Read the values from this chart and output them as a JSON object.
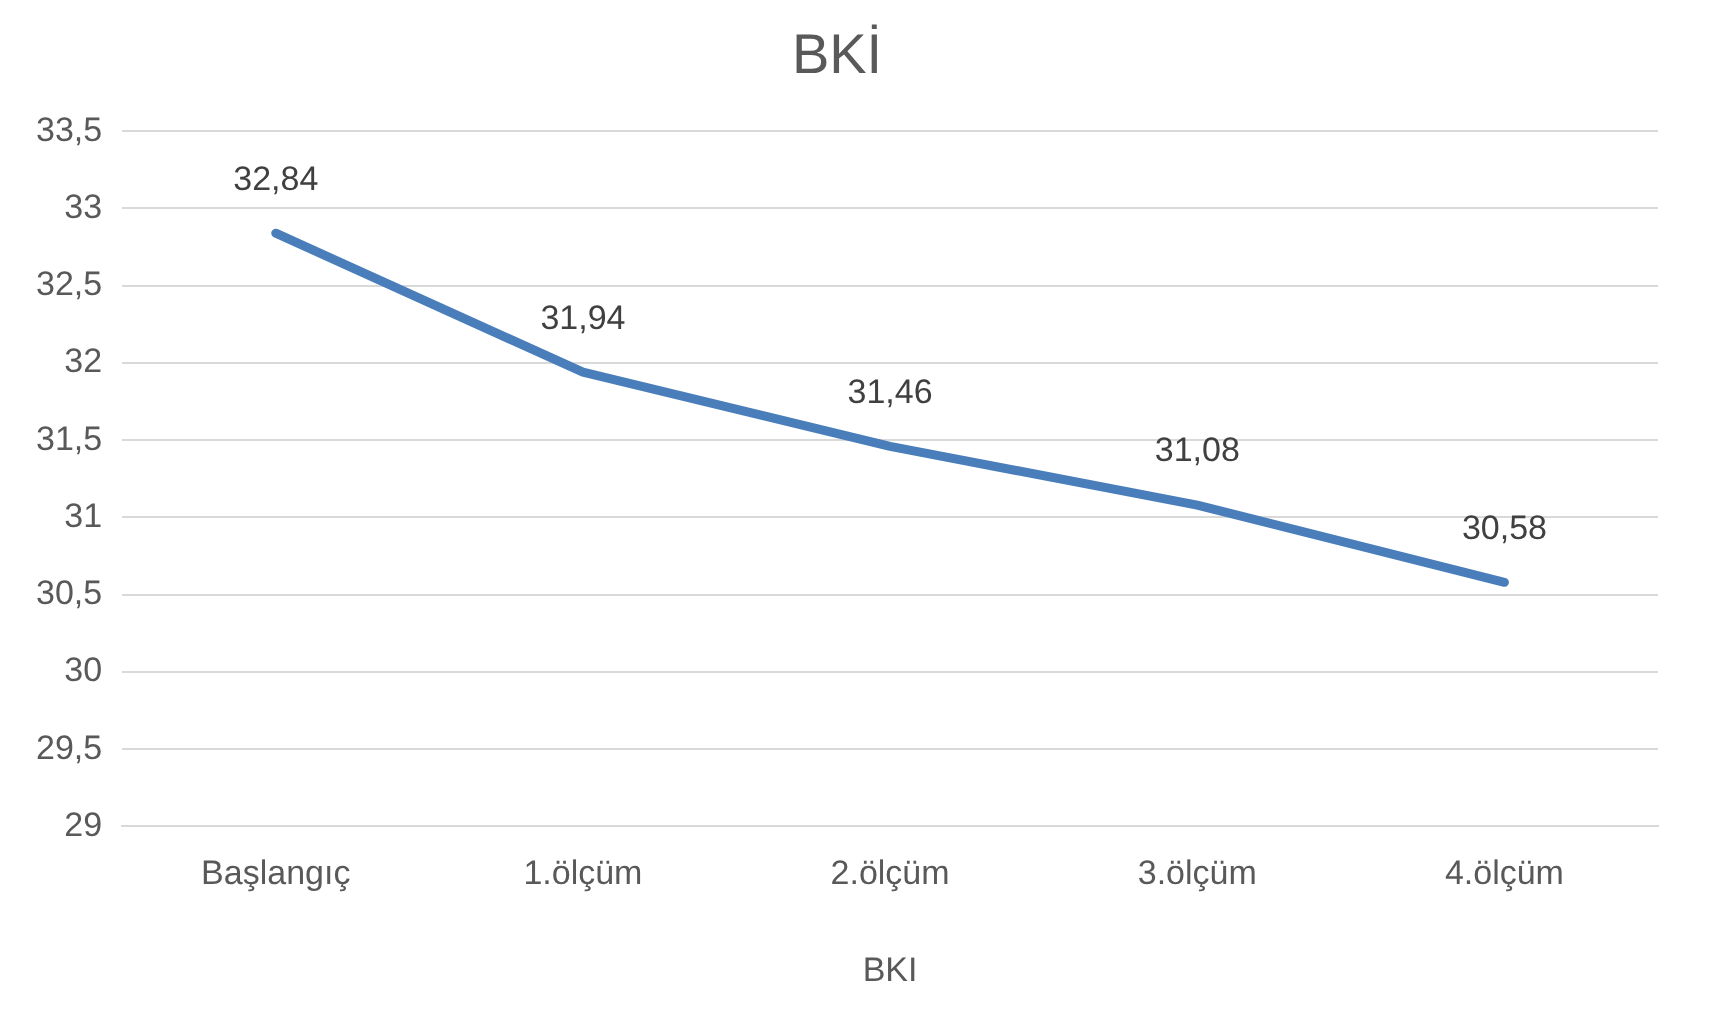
{
  "chart_data": {
    "type": "line",
    "title": "BKİ",
    "xlabel": "BKI",
    "categories": [
      "Başlangıç",
      "1.ölçüm",
      "2.ölçüm",
      "3.ölçüm",
      "4.ölçüm"
    ],
    "series": [
      {
        "color": "#4a7ebb",
        "values": [
          32.84,
          31.94,
          31.46,
          31.08,
          30.58
        ],
        "value_labels": [
          "32,84",
          "31,94",
          "31,46",
          "31,08",
          "30,58"
        ]
      }
    ],
    "ylim": [
      29,
      33.5
    ],
    "yticks": [
      {
        "value": 29,
        "label": "29"
      },
      {
        "value": 29.5,
        "label": "29,5"
      },
      {
        "value": 30,
        "label": "30"
      },
      {
        "value": 30.5,
        "label": "30,5"
      },
      {
        "value": 31,
        "label": "31"
      },
      {
        "value": 31.5,
        "label": "31,5"
      },
      {
        "value": 32,
        "label": "32"
      },
      {
        "value": 32.5,
        "label": "32,5"
      },
      {
        "value": 33,
        "label": "33"
      },
      {
        "value": 33.5,
        "label": "33,5"
      }
    ],
    "grid": "y",
    "legend": false,
    "marker": "none",
    "line_style": "solid"
  }
}
